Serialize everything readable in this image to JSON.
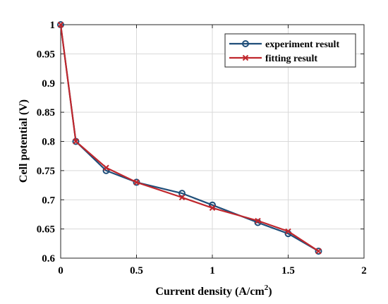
{
  "chart_data": {
    "type": "line",
    "xlabel": "Current density (A/cm",
    "xlabel_sup": "2",
    "xlabel_close": ")",
    "ylabel": "Cell potential (V)",
    "xlim": [
      0,
      2
    ],
    "ylim": [
      0.6,
      1
    ],
    "grid": true,
    "legend_position": "top-right",
    "x_ticks": [
      0,
      0.5,
      1,
      1.5,
      2
    ],
    "x_tick_labels": [
      "0",
      "0.5",
      "1",
      "1.5",
      "2"
    ],
    "y_ticks": [
      0.6,
      0.65,
      0.7,
      0.75,
      0.8,
      0.85,
      0.9,
      0.95,
      1
    ],
    "y_tick_labels": [
      "0.6",
      "0.65",
      "0.7",
      "0.75",
      "0.8",
      "0.85",
      "0.9",
      "0.95",
      "1"
    ],
    "series": [
      {
        "name": "experiment result",
        "color": "#1f4e79",
        "marker": "circle",
        "x": [
          0,
          0.1,
          0.3,
          0.5,
          0.8,
          1.0,
          1.3,
          1.5,
          1.7
        ],
        "y": [
          1.0,
          0.8,
          0.75,
          0.73,
          0.711,
          0.691,
          0.661,
          0.642,
          0.612
        ]
      },
      {
        "name": "fitting result",
        "color": "#c0272d",
        "marker": "x",
        "x": [
          0,
          0.1,
          0.3,
          0.5,
          0.8,
          1.0,
          1.3,
          1.5,
          1.7
        ],
        "y": [
          1.0,
          0.8,
          0.755,
          0.73,
          0.704,
          0.686,
          0.664,
          0.646,
          0.612
        ]
      }
    ]
  }
}
